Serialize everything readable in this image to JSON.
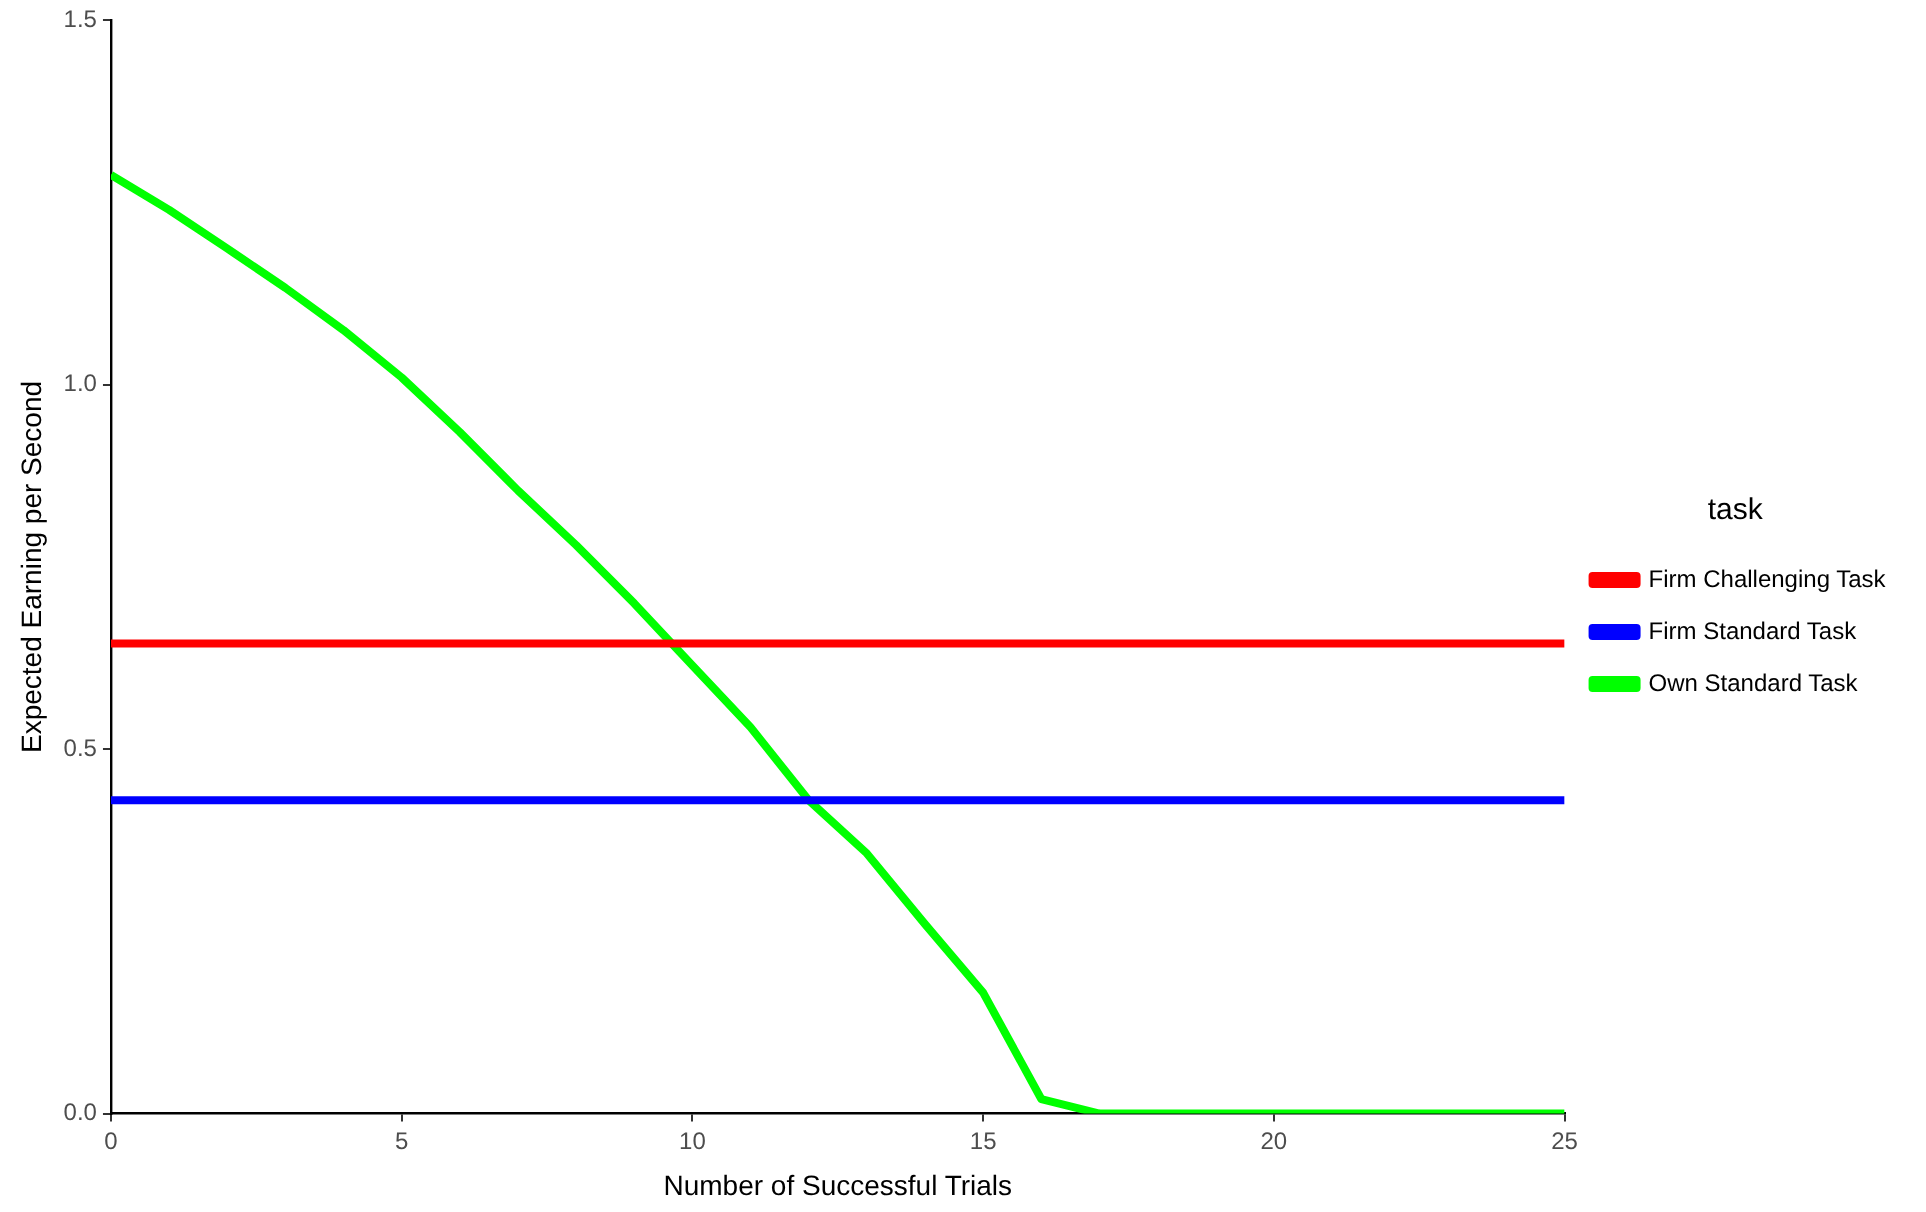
{
  "chart_data": {
    "type": "line",
    "xlabel": "Number of Successful Trials",
    "ylabel": "Expected Earning per Second",
    "legend_title": "task",
    "legend": "right",
    "grid": false,
    "marker": "none",
    "line_style": "solid",
    "xlim": [
      0,
      25
    ],
    "xticks": [
      0,
      5,
      10,
      15,
      20,
      25
    ],
    "ylim": [
      0,
      1.5
    ],
    "yticks": [
      {
        "value": 0,
        "label": "0.0"
      },
      {
        "value": 0.5,
        "label": "0.5"
      },
      {
        "value": 1,
        "label": "1.0"
      },
      {
        "value": 1.5,
        "label": "1.5"
      }
    ],
    "series": [
      {
        "name": "Firm Challenging Task",
        "color": "#ff0000",
        "x": [
          0,
          25
        ],
        "values": [
          0.645,
          0.645
        ]
      },
      {
        "name": "Firm Standard Task",
        "color": "#0000ff",
        "x": [
          0,
          25
        ],
        "values": [
          0.43,
          0.43
        ]
      },
      {
        "name": "Own Standard Task",
        "color": "#00ff00",
        "x": [
          0,
          1,
          2,
          3,
          4,
          5,
          6,
          7,
          8,
          9,
          10,
          11,
          12,
          13,
          14,
          15,
          16,
          17,
          18,
          19,
          20,
          21,
          22,
          23,
          24,
          25
        ],
        "values": [
          1.288,
          1.24,
          1.187,
          1.133,
          1.075,
          1.01,
          0.935,
          0.855,
          0.78,
          0.7,
          0.615,
          0.53,
          0.43,
          0.357,
          0.26,
          0.166,
          0.02,
          0,
          0,
          0,
          0,
          0,
          0,
          0,
          0,
          0
        ]
      }
    ]
  }
}
